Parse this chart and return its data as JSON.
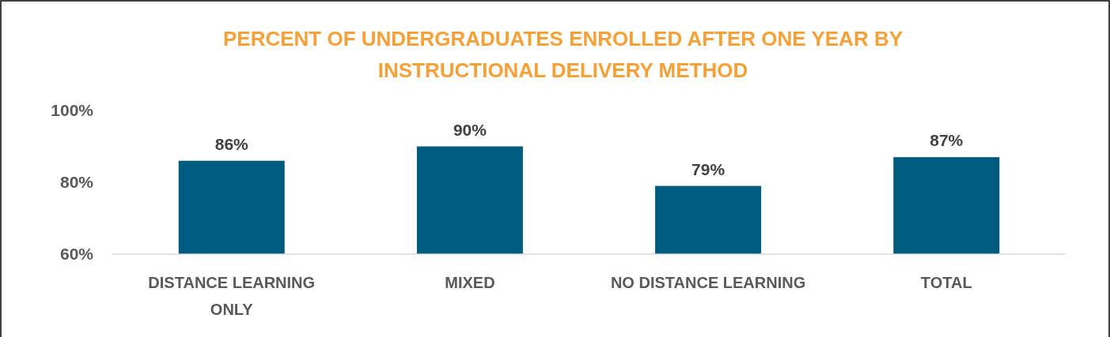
{
  "chart_data": {
    "type": "bar",
    "title": "PERCENT OF UNDERGRADUATES ENROLLED AFTER ONE YEAR BY INSTRUCTIONAL DELIVERY METHOD",
    "categories": [
      "DISTANCE LEARNING ONLY",
      "MIXED",
      "NO DISTANCE LEARNING",
      "TOTAL"
    ],
    "values": [
      86,
      90,
      79,
      87
    ],
    "color": "#005b7f",
    "value_labels": [
      "86%",
      "90%",
      "79%",
      "87%"
    ],
    "ylim": [
      60,
      100
    ],
    "yticks": [
      {
        "value": 60,
        "label": "60%"
      },
      {
        "value": 80,
        "label": "80%"
      },
      {
        "value": 100,
        "label": "100%"
      }
    ]
  }
}
